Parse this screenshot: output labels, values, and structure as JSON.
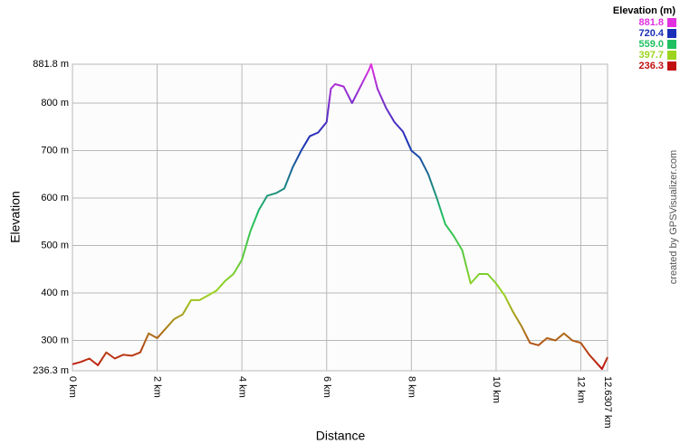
{
  "chart_data": {
    "type": "line",
    "y_label": "Elevation",
    "x_label": "Distance",
    "legend_title": "Elevation (m)",
    "credit": "created by GPSVisualizer.com",
    "color_scale": [
      {
        "value": 881.8,
        "color": "#e030e0"
      },
      {
        "value": 720.4,
        "color": "#1a2fb8"
      },
      {
        "value": 559,
        "label": "559.0",
        "color": "#20c060"
      },
      {
        "value": 397.7,
        "color": "#9cd420"
      },
      {
        "value": 236.3,
        "color": "#c01010"
      }
    ],
    "xlim": [
      0,
      12.6307
    ],
    "ylim": [
      236.3,
      881.8
    ],
    "xticks": [
      {
        "value": 0,
        "label": "0 km"
      },
      {
        "value": 2,
        "label": "2 km"
      },
      {
        "value": 4,
        "label": "4 km"
      },
      {
        "value": 6,
        "label": "6 km"
      },
      {
        "value": 8,
        "label": "8 km"
      },
      {
        "value": 10,
        "label": "10 km"
      },
      {
        "value": 12,
        "label": "12 km"
      },
      {
        "value": 12.6307,
        "label": "12.6307 km"
      }
    ],
    "yticks": [
      {
        "value": 236.3,
        "label": "236.3 m"
      },
      {
        "value": 300,
        "label": "300 m"
      },
      {
        "value": 400,
        "label": "400 m"
      },
      {
        "value": 500,
        "label": "500 m"
      },
      {
        "value": 600,
        "label": "600 m"
      },
      {
        "value": 700,
        "label": "700 m"
      },
      {
        "value": 800,
        "label": "800 m"
      },
      {
        "value": 881.8,
        "label": "881.8 m"
      }
    ],
    "grid": true,
    "x": [
      0,
      0.2,
      0.4,
      0.6,
      0.8,
      1.0,
      1.2,
      1.4,
      1.6,
      1.8,
      2.0,
      2.2,
      2.4,
      2.6,
      2.8,
      3.0,
      3.2,
      3.4,
      3.6,
      3.8,
      4.0,
      4.2,
      4.4,
      4.6,
      4.8,
      5.0,
      5.2,
      5.4,
      5.6,
      5.8,
      6.0,
      6.1,
      6.2,
      6.4,
      6.6,
      6.8,
      7.0,
      7.05,
      7.2,
      7.4,
      7.6,
      7.8,
      8.0,
      8.2,
      8.4,
      8.6,
      8.8,
      9.0,
      9.2,
      9.4,
      9.6,
      9.8,
      10.0,
      10.2,
      10.4,
      10.6,
      10.8,
      11.0,
      11.2,
      11.4,
      11.6,
      11.8,
      12.0,
      12.2,
      12.4,
      12.5,
      12.6307
    ],
    "values": [
      250,
      255,
      262,
      248,
      275,
      262,
      270,
      268,
      275,
      315,
      305,
      325,
      345,
      355,
      385,
      385,
      395,
      405,
      425,
      440,
      470,
      530,
      575,
      605,
      610,
      620,
      665,
      700,
      730,
      738,
      760,
      830,
      840,
      835,
      800,
      835,
      870,
      881.8,
      830,
      790,
      760,
      740,
      700,
      685,
      650,
      600,
      545,
      520,
      490,
      420,
      440,
      440,
      420,
      395,
      360,
      330,
      295,
      290,
      305,
      300,
      315,
      300,
      295,
      270,
      250,
      240,
      265
    ]
  }
}
